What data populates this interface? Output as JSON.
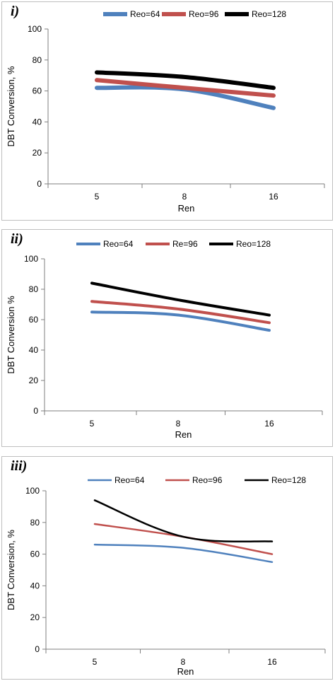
{
  "chart_data": [
    {
      "type": "line",
      "panel_label": "i)",
      "categories": [
        "5",
        "8",
        "16"
      ],
      "ylabel": "DBT Conversion, %",
      "xlabel": "Ren",
      "ylim": [
        0,
        100
      ],
      "yticks": [
        "0",
        "20",
        "40",
        "60",
        "80",
        "100"
      ],
      "series": [
        {
          "name": "Reo=64",
          "color": "#4f81bd",
          "values": [
            62,
            61,
            49
          ]
        },
        {
          "name": "Reo=96",
          "color": "#c0504d",
          "values": [
            67,
            62,
            57
          ]
        },
        {
          "name": "Reo=128",
          "color": "#000000",
          "values": [
            72,
            69,
            62
          ]
        }
      ],
      "legend": "top",
      "grid": false
    },
    {
      "type": "line",
      "panel_label": "ii)",
      "categories": [
        "5",
        "8",
        "16"
      ],
      "ylabel": "DBT Conversion %",
      "xlabel": "Ren",
      "ylim": [
        0,
        100
      ],
      "yticks": [
        "0",
        "20",
        "40",
        "60",
        "80",
        "100"
      ],
      "series": [
        {
          "name": "Reo=64",
          "color": "#4f81bd",
          "values": [
            65,
            63,
            53
          ]
        },
        {
          "name": "Re=96",
          "color": "#c0504d",
          "values": [
            72,
            67,
            58
          ]
        },
        {
          "name": "Reo=128",
          "color": "#000000",
          "values": [
            84,
            73,
            63
          ]
        }
      ],
      "legend": "top",
      "grid": false
    },
    {
      "type": "line",
      "panel_label": "iii)",
      "categories": [
        "5",
        "8",
        "16"
      ],
      "ylabel": "DBT Conversion, %",
      "xlabel": "Ren",
      "ylim": [
        0,
        100
      ],
      "yticks": [
        "0",
        "20",
        "40",
        "60",
        "80",
        "100"
      ],
      "series": [
        {
          "name": "Reo=64",
          "color": "#4f81bd",
          "values": [
            66,
            64,
            55
          ]
        },
        {
          "name": "Reo=96",
          "color": "#c0504d",
          "values": [
            79,
            71,
            60
          ]
        },
        {
          "name": "Reo=128",
          "color": "#000000",
          "values": [
            94,
            71,
            68
          ]
        }
      ],
      "legend": "top",
      "grid": false
    }
  ]
}
